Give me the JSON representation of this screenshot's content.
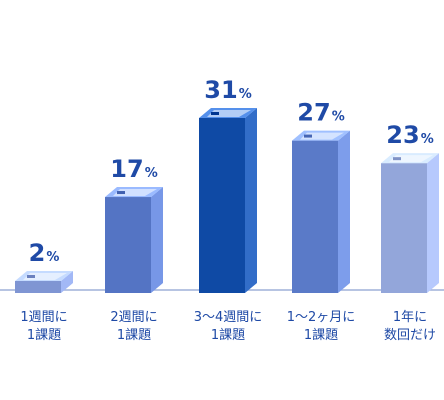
{
  "chart_data": {
    "type": "bar",
    "categories": [
      [
        "1週間に",
        "1課題"
      ],
      [
        "2週間に",
        "1課題"
      ],
      [
        "3〜4週間に",
        "1課題"
      ],
      [
        "1〜2ヶ月に",
        "1課題"
      ],
      [
        "1年に",
        "数回だけ"
      ]
    ],
    "values": [
      2,
      17,
      31,
      27,
      23
    ],
    "value_unit": "%",
    "ylim": [
      0,
      31
    ],
    "grid": false,
    "legend": "none",
    "colors": {
      "bars": [
        "#7f95d3",
        "#5474c4",
        "#0f4aa5",
        "#5a7ac8",
        "#93a6da"
      ],
      "baseline": "#9fb0d8",
      "label": "#1f4aa6"
    }
  }
}
